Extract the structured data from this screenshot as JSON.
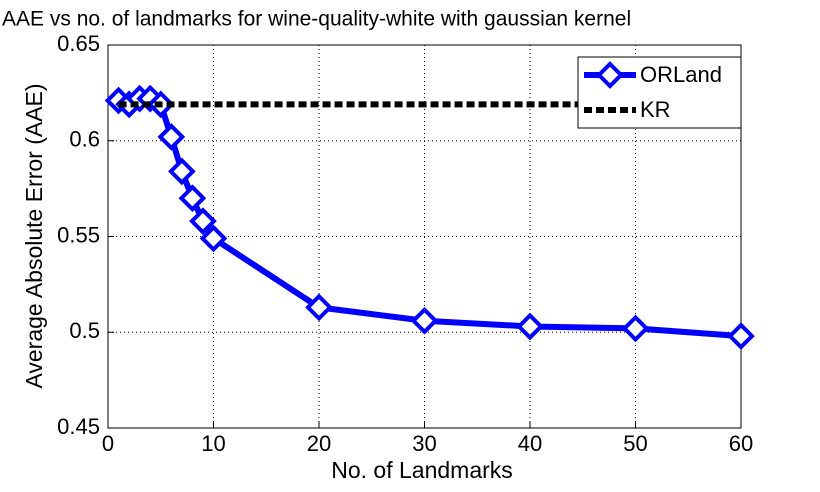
{
  "chart_data": {
    "type": "line",
    "title": "AAE vs no. of landmarks for wine-quality-white with gaussian kernel",
    "xlabel": "No. of Landmarks",
    "ylabel": "Average Absolute Error (AAE)",
    "series": [
      {
        "name": "ORLand",
        "color": "#0000ff",
        "marker": "diamond",
        "linestyle": "solid",
        "x": [
          1,
          2,
          3,
          4,
          5,
          6,
          7,
          8,
          9,
          10,
          20,
          30,
          40,
          50,
          60
        ],
        "values": [
          0.621,
          0.619,
          0.622,
          0.622,
          0.619,
          0.602,
          0.584,
          0.57,
          0.558,
          0.549,
          0.513,
          0.506,
          0.503,
          0.502,
          0.498
        ]
      },
      {
        "name": "KR",
        "color": "#000000",
        "marker": "none",
        "linestyle": "dashed",
        "x": [
          1,
          60
        ],
        "values": [
          0.619,
          0.619
        ]
      }
    ],
    "xlim": [
      0,
      60
    ],
    "xticks": [
      0,
      10,
      20,
      30,
      40,
      50,
      60
    ],
    "ylim": [
      0.45,
      0.65
    ],
    "yticks": [
      0.45,
      0.5,
      0.55,
      0.6,
      0.65
    ],
    "grid": true,
    "legend": "upper right"
  }
}
